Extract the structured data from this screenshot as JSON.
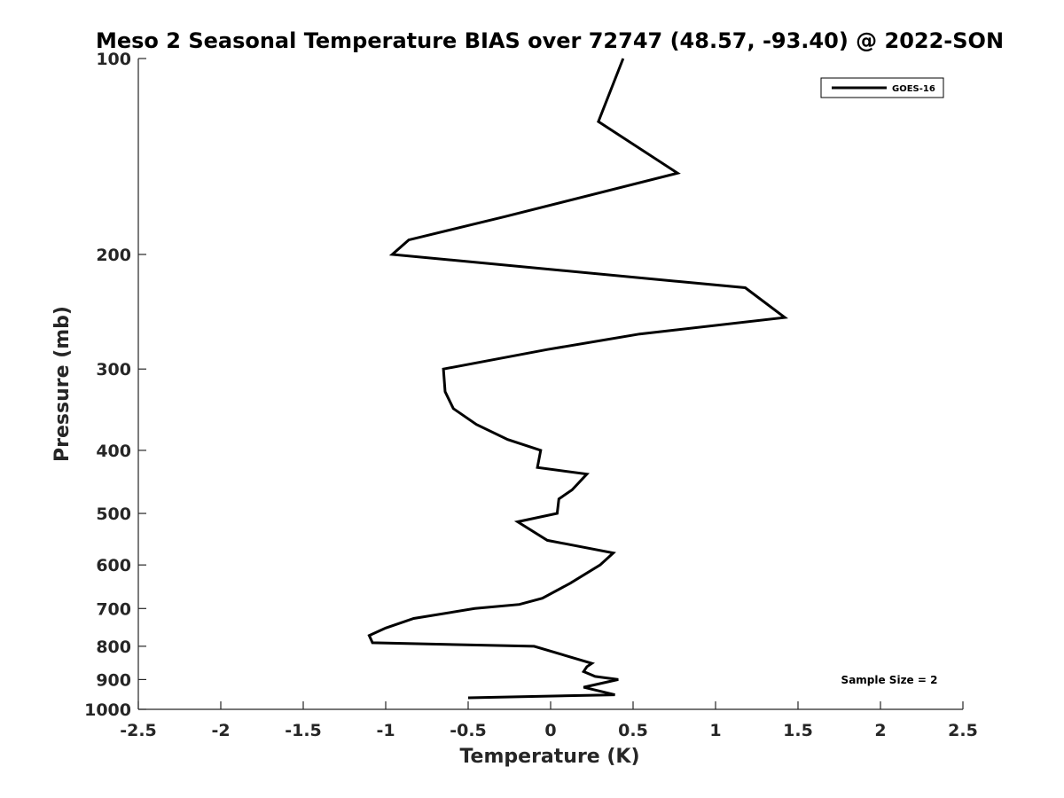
{
  "chart_data": {
    "type": "line",
    "title": "Meso 2 Seasonal Temperature BIAS over 72747 (48.57, -93.40) @ 2022-SON",
    "xlabel": "Temperature (K)",
    "ylabel": "Pressure (mb)",
    "xlim": [
      -2.5,
      2.5
    ],
    "ylim": [
      100,
      1000
    ],
    "y_scale": "log",
    "y_reversed": true,
    "grid": false,
    "xticks": [
      -2.5,
      -2,
      -1.5,
      -1,
      -0.5,
      0,
      0.5,
      1,
      1.5,
      2,
      2.5
    ],
    "xtick_labels": [
      "-2.5",
      "-2",
      "-1.5",
      "-1",
      "-0.5",
      "0",
      "0.5",
      "1",
      "1.5",
      "2",
      "2.5"
    ],
    "yticks": [
      100,
      200,
      300,
      400,
      500,
      600,
      700,
      800,
      900,
      1000
    ],
    "ytick_labels": [
      "100",
      "200",
      "300",
      "400",
      "500",
      "600",
      "700",
      "800",
      "900",
      "1000"
    ],
    "legend_position": "top-right",
    "annotation": "Sample Size = 2",
    "series": [
      {
        "name": "GOES-16",
        "color": "#000000",
        "points": [
          {
            "x": 0.44,
            "y": 100
          },
          {
            "x": 0.29,
            "y": 125
          },
          {
            "x": 0.77,
            "y": 150
          },
          {
            "x": -0.28,
            "y": 175
          },
          {
            "x": -0.86,
            "y": 190
          },
          {
            "x": -0.96,
            "y": 200
          },
          {
            "x": 1.18,
            "y": 225
          },
          {
            "x": 1.42,
            "y": 250
          },
          {
            "x": 0.54,
            "y": 265
          },
          {
            "x": -0.02,
            "y": 280
          },
          {
            "x": -0.65,
            "y": 300
          },
          {
            "x": -0.64,
            "y": 325
          },
          {
            "x": -0.59,
            "y": 345
          },
          {
            "x": -0.45,
            "y": 365
          },
          {
            "x": -0.26,
            "y": 385
          },
          {
            "x": -0.06,
            "y": 400
          },
          {
            "x": -0.08,
            "y": 425
          },
          {
            "x": 0.22,
            "y": 435
          },
          {
            "x": 0.13,
            "y": 460
          },
          {
            "x": 0.05,
            "y": 475
          },
          {
            "x": 0.04,
            "y": 500
          },
          {
            "x": -0.2,
            "y": 515
          },
          {
            "x": -0.02,
            "y": 550
          },
          {
            "x": 0.38,
            "y": 575
          },
          {
            "x": 0.3,
            "y": 600
          },
          {
            "x": 0.12,
            "y": 640
          },
          {
            "x": -0.05,
            "y": 675
          },
          {
            "x": -0.19,
            "y": 690
          },
          {
            "x": -0.46,
            "y": 700
          },
          {
            "x": -0.83,
            "y": 725
          },
          {
            "x": -1.0,
            "y": 750
          },
          {
            "x": -1.1,
            "y": 770
          },
          {
            "x": -1.08,
            "y": 790
          },
          {
            "x": -0.1,
            "y": 800
          },
          {
            "x": 0.25,
            "y": 850
          },
          {
            "x": 0.22,
            "y": 860
          },
          {
            "x": 0.2,
            "y": 875
          },
          {
            "x": 0.27,
            "y": 890
          },
          {
            "x": 0.41,
            "y": 900
          },
          {
            "x": 0.2,
            "y": 925
          },
          {
            "x": 0.39,
            "y": 950
          },
          {
            "x": -0.5,
            "y": 960
          }
        ]
      }
    ]
  }
}
